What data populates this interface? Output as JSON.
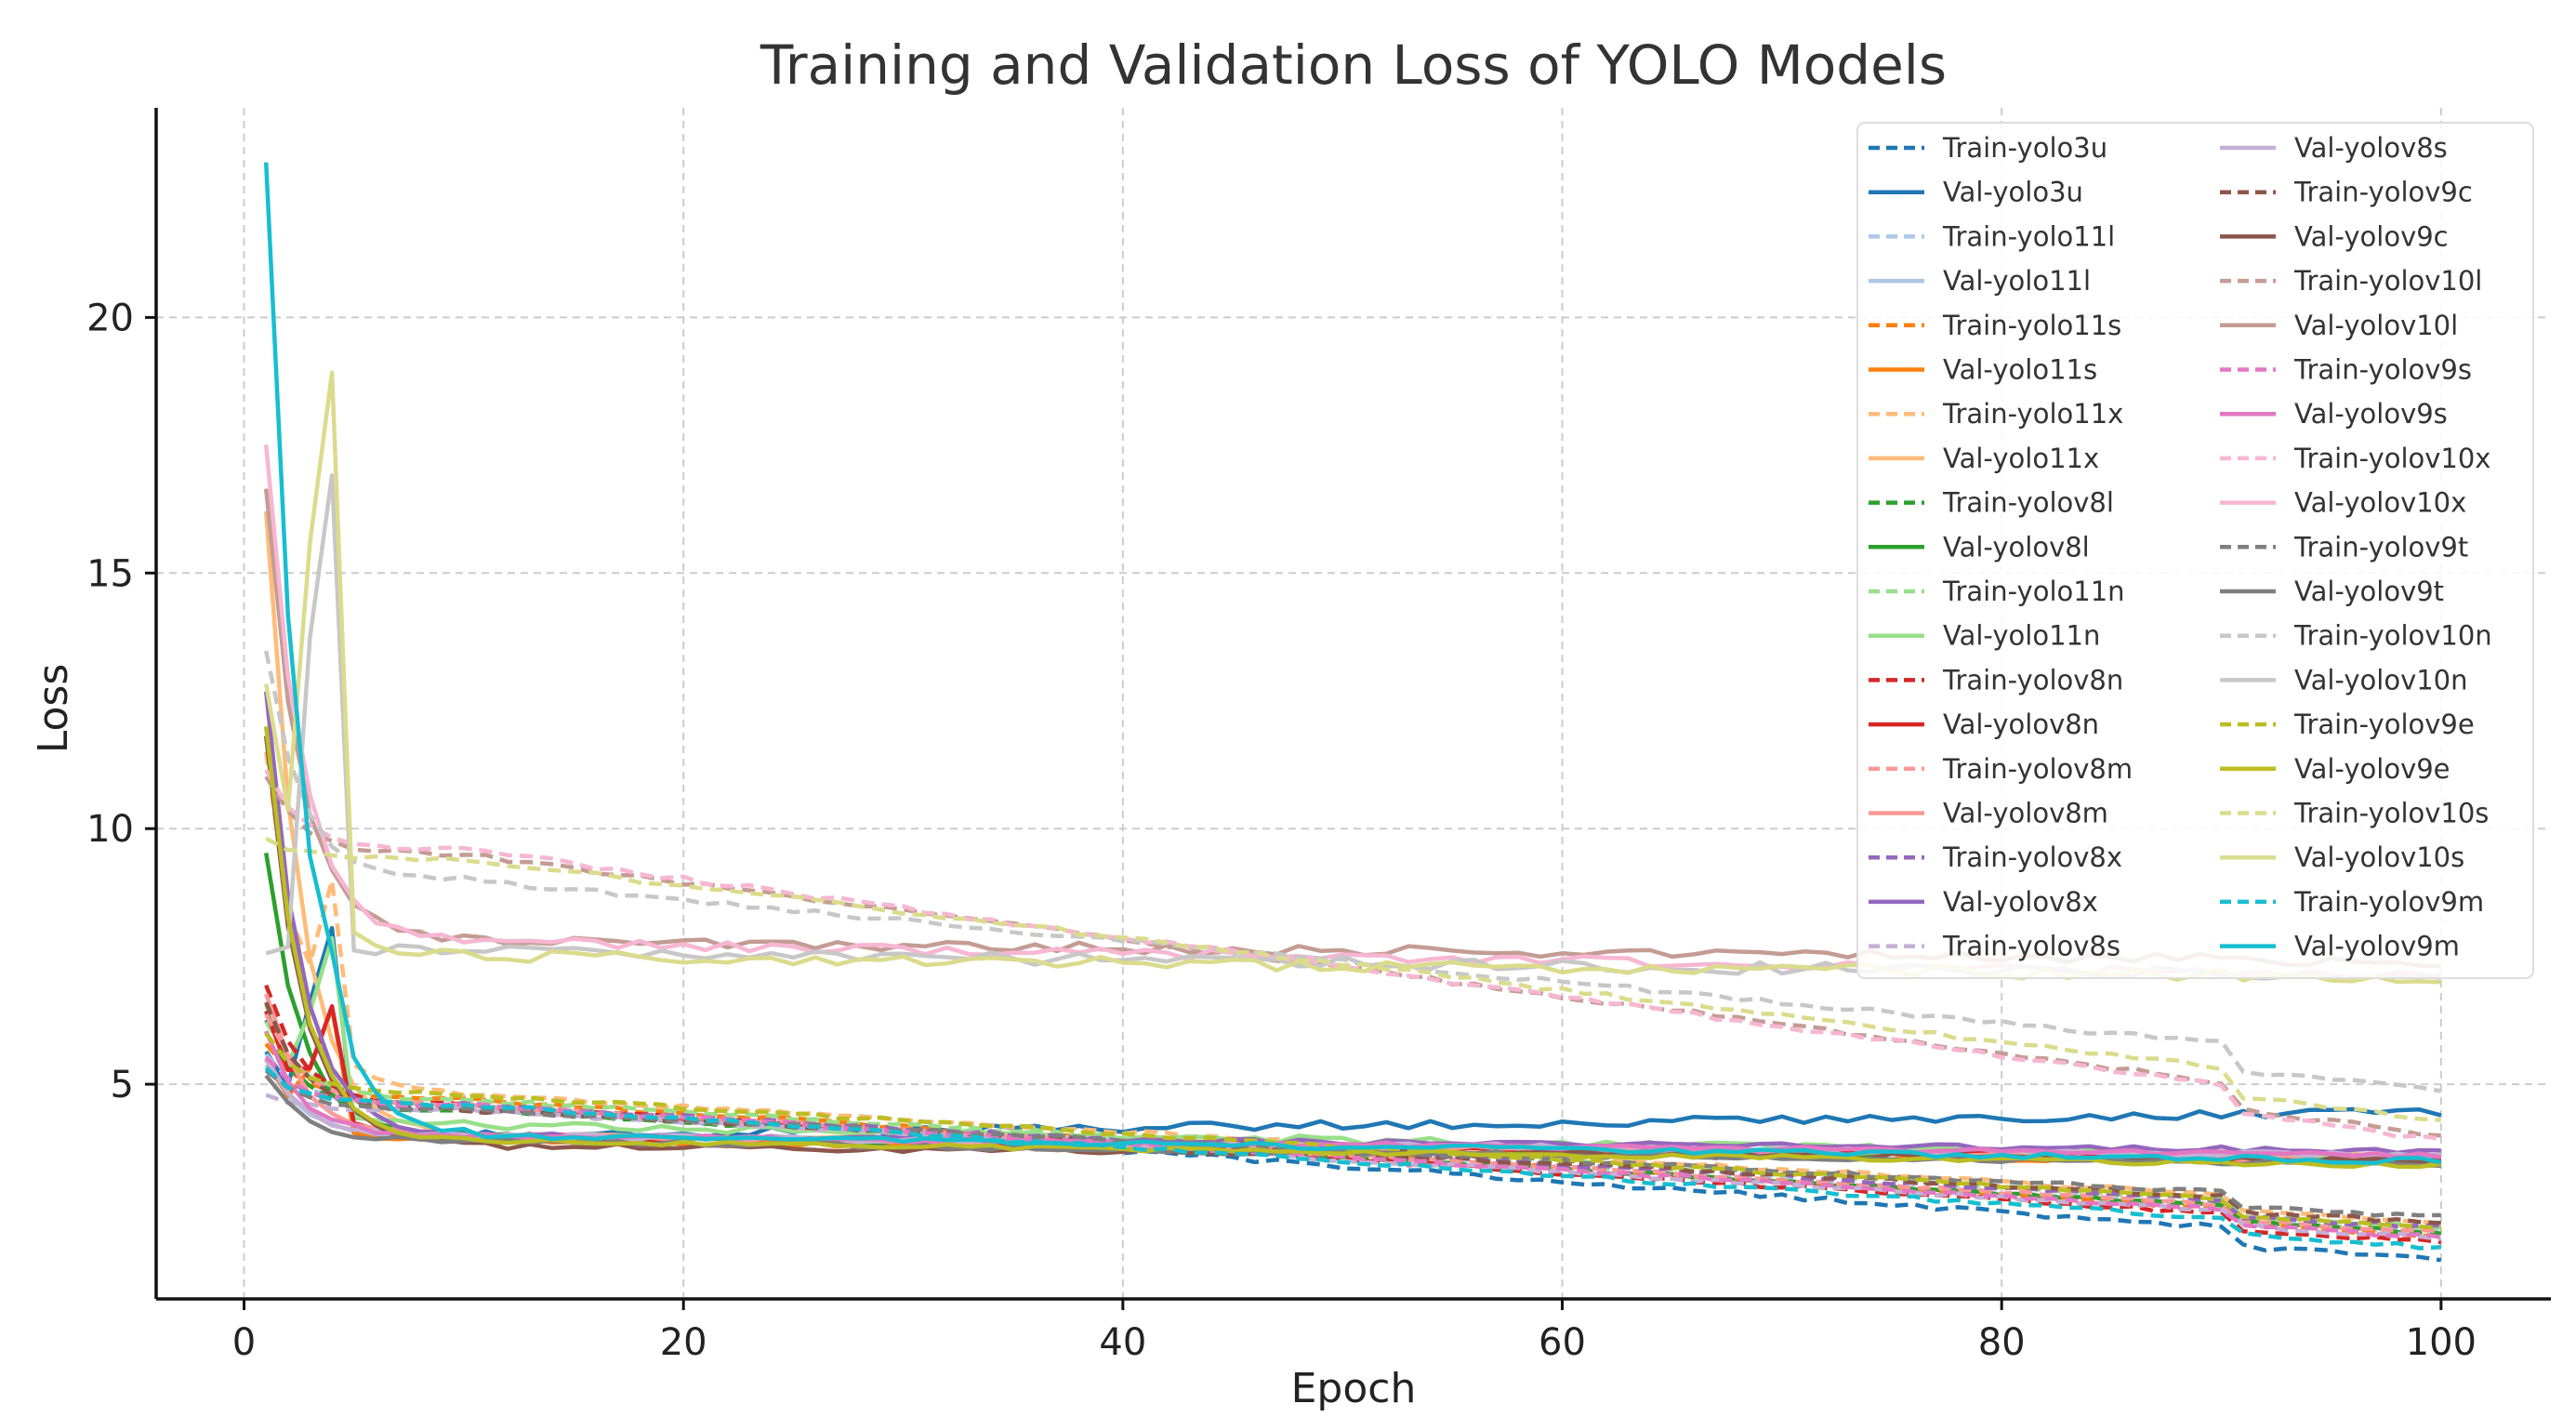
{
  "chart_data": {
    "type": "line",
    "title": "Training and Validation Loss of YOLO Models",
    "xlabel": "Epoch",
    "ylabel": "Loss",
    "xlim": [
      -4,
      105
    ],
    "ylim": [
      0.8,
      24.1
    ],
    "xticks": [
      0,
      20,
      40,
      60,
      80,
      100
    ],
    "yticks": [
      5,
      10,
      15,
      20
    ],
    "grid": true,
    "legend_position": "top-right",
    "series": [
      {
        "name": "Train-yolo3u",
        "color": "#1f77b4",
        "style": "dashed",
        "start": 6.3,
        "peak": 0,
        "settle": 4.6,
        "end": 1.9,
        "drop": 0.35,
        "noise": 0.05,
        "mode": "decline"
      },
      {
        "name": "Val-yolo3u",
        "color": "#1f77b4",
        "style": "solid",
        "start": 5.7,
        "peak": 8.0,
        "settle": 4.0,
        "end": 4.45,
        "drop": 0,
        "noise": 0.09,
        "mode": "rise"
      },
      {
        "name": "Train-yolo11l",
        "color": "#aec7e8",
        "style": "dashed",
        "start": 5.6,
        "peak": 0,
        "settle": 4.6,
        "end": 2.4,
        "drop": 0.3,
        "noise": 0.04,
        "mode": "decline"
      },
      {
        "name": "Val-yolo11l",
        "color": "#aec7e8",
        "style": "solid",
        "start": 5.4,
        "peak": 0,
        "settle": 4.0,
        "end": 3.55,
        "drop": 0,
        "noise": 0.05,
        "mode": "flat"
      },
      {
        "name": "Train-yolo11s",
        "color": "#ff7f0e",
        "style": "dashed",
        "start": 5.8,
        "peak": 0,
        "settle": 4.7,
        "end": 2.3,
        "drop": 0.3,
        "noise": 0.04,
        "mode": "decline"
      },
      {
        "name": "Val-yolo11s",
        "color": "#ff7f0e",
        "style": "solid",
        "start": 5.5,
        "peak": 6.5,
        "settle": 3.9,
        "end": 3.45,
        "drop": 0,
        "noise": 0.06,
        "mode": "flat"
      },
      {
        "name": "Train-yolo11x",
        "color": "#ffbb78",
        "style": "dashed",
        "start": 11.5,
        "peak": 9.0,
        "settle": 4.8,
        "end": 2.6,
        "drop": 0.3,
        "noise": 0.04,
        "mode": "decline"
      },
      {
        "name": "Val-yolo11x",
        "color": "#ffbb78",
        "style": "solid",
        "start": 16.2,
        "peak": 0,
        "settle": 4.0,
        "end": 3.6,
        "drop": 0,
        "noise": 0.05,
        "mode": "flat"
      },
      {
        "name": "Train-yolov8l",
        "color": "#2ca02c",
        "style": "dashed",
        "start": 6.0,
        "peak": 0,
        "settle": 4.5,
        "end": 2.4,
        "drop": 0.3,
        "noise": 0.04,
        "mode": "decline"
      },
      {
        "name": "Val-yolov8l",
        "color": "#2ca02c",
        "style": "solid",
        "start": 9.5,
        "peak": 0,
        "settle": 4.0,
        "end": 3.5,
        "drop": 0,
        "noise": 0.05,
        "mode": "flat"
      },
      {
        "name": "Train-yolo11n",
        "color": "#98df8a",
        "style": "dashed",
        "start": 6.2,
        "peak": 0,
        "settle": 4.7,
        "end": 2.5,
        "drop": 0.3,
        "noise": 0.04,
        "mode": "decline"
      },
      {
        "name": "Val-yolo11n",
        "color": "#98df8a",
        "style": "solid",
        "start": 6.5,
        "peak": 7.8,
        "settle": 4.2,
        "end": 3.55,
        "drop": 0,
        "noise": 0.08,
        "mode": "flat"
      },
      {
        "name": "Train-yolov8n",
        "color": "#d62728",
        "style": "dashed",
        "start": 6.9,
        "peak": 0,
        "settle": 4.6,
        "end": 2.2,
        "drop": 0.3,
        "noise": 0.04,
        "mode": "decline"
      },
      {
        "name": "Val-yolov8n",
        "color": "#d62728",
        "style": "solid",
        "start": 6.5,
        "peak": 6.5,
        "settle": 4.0,
        "end": 3.5,
        "drop": 0,
        "noise": 0.07,
        "mode": "flat"
      },
      {
        "name": "Train-yolov8m",
        "color": "#ff9896",
        "style": "dashed",
        "start": 6.4,
        "peak": 0,
        "settle": 4.6,
        "end": 2.4,
        "drop": 0.3,
        "noise": 0.04,
        "mode": "decline"
      },
      {
        "name": "Val-yolov8m",
        "color": "#ff9896",
        "style": "solid",
        "start": 6.8,
        "peak": 0,
        "settle": 4.0,
        "end": 3.5,
        "drop": 0,
        "noise": 0.05,
        "mode": "flat"
      },
      {
        "name": "Train-yolov8x",
        "color": "#9467bd",
        "style": "dashed",
        "start": 5.5,
        "peak": 0,
        "settle": 4.6,
        "end": 2.5,
        "drop": 0.3,
        "noise": 0.04,
        "mode": "decline"
      },
      {
        "name": "Val-yolov8x",
        "color": "#9467bd",
        "style": "solid",
        "start": 12.7,
        "peak": 0,
        "settle": 4.0,
        "end": 3.7,
        "drop": 0,
        "noise": 0.05,
        "mode": "flat"
      },
      {
        "name": "Train-yolov8s",
        "color": "#c5b0d5",
        "style": "dashed",
        "start": 4.8,
        "peak": 0,
        "settle": 4.5,
        "end": 2.3,
        "drop": 0.3,
        "noise": 0.04,
        "mode": "decline"
      },
      {
        "name": "Val-yolov8s",
        "color": "#c5b0d5",
        "style": "solid",
        "start": 5.5,
        "peak": 0,
        "settle": 4.0,
        "end": 3.6,
        "drop": 0,
        "noise": 0.05,
        "mode": "flat"
      },
      {
        "name": "Train-yolov9c",
        "color": "#8c564b",
        "style": "dashed",
        "start": 6.6,
        "peak": 0,
        "settle": 4.5,
        "end": 2.6,
        "drop": 0.3,
        "noise": 0.04,
        "mode": "decline"
      },
      {
        "name": "Val-yolov9c",
        "color": "#8c564b",
        "style": "solid",
        "start": 11.8,
        "peak": 0,
        "settle": 3.8,
        "end": 3.5,
        "drop": 0,
        "noise": 0.06,
        "mode": "flat"
      },
      {
        "name": "Train-yolov10l",
        "color": "#c49c94",
        "style": "dashed",
        "start": 11.0,
        "peak": 0,
        "settle": 9.5,
        "end": 4.5,
        "drop": 0.5,
        "noise": 0.05,
        "mode": "decline"
      },
      {
        "name": "Val-yolov10l",
        "color": "#c49c94",
        "style": "solid",
        "start": 16.6,
        "peak": 0,
        "settle": 7.8,
        "end": 7.4,
        "drop": 0,
        "noise": 0.1,
        "mode": "flat"
      },
      {
        "name": "Train-yolov9s",
        "color": "#e377c2",
        "style": "dashed",
        "start": 5.5,
        "peak": 0,
        "settle": 4.6,
        "end": 2.3,
        "drop": 0.3,
        "noise": 0.04,
        "mode": "decline"
      },
      {
        "name": "Val-yolov9s",
        "color": "#e377c2",
        "style": "solid",
        "start": 6.0,
        "peak": 0,
        "settle": 4.0,
        "end": 3.6,
        "drop": 0,
        "noise": 0.05,
        "mode": "flat"
      },
      {
        "name": "Train-yolov10x",
        "color": "#f7b6d2",
        "style": "dashed",
        "start": 11.1,
        "peak": 0,
        "settle": 9.6,
        "end": 4.4,
        "drop": 0.5,
        "noise": 0.05,
        "mode": "decline"
      },
      {
        "name": "Val-yolov10x",
        "color": "#f7b6d2",
        "style": "solid",
        "start": 17.6,
        "peak": 0,
        "settle": 7.8,
        "end": 7.1,
        "drop": 0,
        "noise": 0.1,
        "mode": "flat"
      },
      {
        "name": "Train-yolov9t",
        "color": "#7f7f7f",
        "style": "dashed",
        "start": 5.3,
        "peak": 0,
        "settle": 4.5,
        "end": 2.7,
        "drop": 0.3,
        "noise": 0.04,
        "mode": "decline"
      },
      {
        "name": "Val-yolov9t",
        "color": "#7f7f7f",
        "style": "solid",
        "start": 5.2,
        "peak": 0,
        "settle": 3.9,
        "end": 3.4,
        "drop": 0,
        "noise": 0.05,
        "mode": "flat"
      },
      {
        "name": "Train-yolov10n",
        "color": "#c7c7c7",
        "style": "dashed",
        "start": 13.5,
        "peak": 0,
        "settle": 9.0,
        "end": 5.4,
        "drop": 0.5,
        "noise": 0.05,
        "mode": "decline"
      },
      {
        "name": "Val-yolov10n",
        "color": "#c7c7c7",
        "style": "solid",
        "start": 7.6,
        "peak": 16.8,
        "settle": 7.6,
        "end": 7.1,
        "drop": 0,
        "noise": 0.12,
        "mode": "flat"
      },
      {
        "name": "Train-yolov9e",
        "color": "#bcbd22",
        "style": "dashed",
        "start": 6.0,
        "peak": 0,
        "settle": 4.8,
        "end": 2.5,
        "drop": 0.3,
        "noise": 0.04,
        "mode": "decline"
      },
      {
        "name": "Val-yolov9e",
        "color": "#bcbd22",
        "style": "solid",
        "start": 12.0,
        "peak": 0,
        "settle": 3.9,
        "end": 3.4,
        "drop": 0,
        "noise": 0.05,
        "mode": "flat"
      },
      {
        "name": "Train-yolov10s",
        "color": "#dbdb8d",
        "style": "dashed",
        "start": 9.8,
        "peak": 0,
        "settle": 9.4,
        "end": 4.8,
        "drop": 0.5,
        "noise": 0.05,
        "mode": "decline"
      },
      {
        "name": "Val-yolov10s",
        "color": "#dbdb8d",
        "style": "solid",
        "start": 12.8,
        "peak": 18.9,
        "settle": 7.5,
        "end": 7.1,
        "drop": 0,
        "noise": 0.12,
        "mode": "flat"
      },
      {
        "name": "Train-yolov9m",
        "color": "#17becf",
        "style": "dashed",
        "start": 5.3,
        "peak": 0,
        "settle": 4.6,
        "end": 2.1,
        "drop": 0.3,
        "noise": 0.04,
        "mode": "decline"
      },
      {
        "name": "Val-yolov9m",
        "color": "#17becf",
        "style": "solid",
        "start": 23.0,
        "peak": 7.6,
        "settle": 4.0,
        "end": 3.5,
        "drop": 0,
        "noise": 0.06,
        "mode": "flat"
      }
    ]
  }
}
